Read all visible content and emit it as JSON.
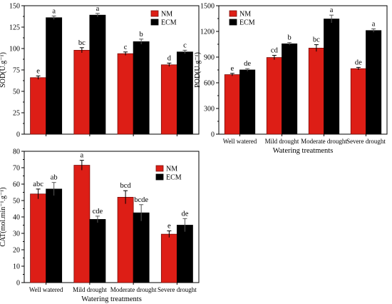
{
  "legend": {
    "nm": "NM",
    "ecm": "ECM"
  },
  "colors": {
    "nm": "#dd1e16",
    "ecm": "#000000",
    "nm_edge": "#7a0e0a"
  },
  "chart_data": [
    {
      "id": "sod",
      "type": "bar",
      "title": "",
      "xlabel": "",
      "ylabel": "SOD(U.g⁻¹)",
      "ylim": [
        0,
        150
      ],
      "yticks": [
        0,
        25,
        50,
        75,
        100,
        125,
        150
      ],
      "categories": [
        "",
        "",
        "",
        ""
      ],
      "legend_position": "top-right",
      "series": [
        {
          "name": "NM",
          "values": [
            66,
            98,
            94,
            81
          ],
          "errors": [
            2,
            3,
            2,
            2
          ],
          "labels": [
            "e",
            "bc",
            "c",
            "d"
          ]
        },
        {
          "name": "ECM",
          "values": [
            136,
            139,
            108,
            96
          ],
          "errors": [
            2,
            2,
            3,
            2
          ],
          "labels": [
            "a",
            "a",
            "b",
            "c"
          ]
        }
      ]
    },
    {
      "id": "pod",
      "type": "bar",
      "title": "",
      "xlabel": "Watering treatments",
      "ylabel": "POD(U.g⁻¹)",
      "ylim": [
        0,
        1500
      ],
      "yticks": [
        0,
        300,
        600,
        900,
        1200,
        1500
      ],
      "categories": [
        "Well watered",
        "Mild drought",
        "Moderate drought",
        "Severe drought"
      ],
      "legend_position": "top-left",
      "series": [
        {
          "name": "NM",
          "values": [
            695,
            895,
            1005,
            765
          ],
          "errors": [
            15,
            25,
            40,
            15
          ],
          "labels": [
            "e",
            "cd",
            "bc",
            "de"
          ]
        },
        {
          "name": "ECM",
          "values": [
            750,
            1055,
            1345,
            1210
          ],
          "errors": [
            15,
            15,
            45,
            20
          ],
          "labels": [
            "de",
            "b",
            "a",
            "a"
          ]
        }
      ]
    },
    {
      "id": "cat",
      "type": "bar",
      "title": "",
      "xlabel": "Watering treatments",
      "ylabel": "CAT(mol.min⁻¹.g⁻¹)",
      "ylim": [
        0,
        80
      ],
      "yticks": [
        0,
        10,
        20,
        30,
        40,
        50,
        60,
        70,
        80
      ],
      "categories": [
        "Well watered",
        "Mild drought",
        "Moderate drought",
        "Severe drought"
      ],
      "legend_position": "top-right",
      "series": [
        {
          "name": "NM",
          "values": [
            54,
            71.5,
            52,
            29.5
          ],
          "errors": [
            3,
            3,
            4,
            2
          ],
          "labels": [
            "abc",
            "a",
            "bcd",
            "e"
          ]
        },
        {
          "name": "ECM",
          "values": [
            57,
            38.5,
            42.5,
            35
          ],
          "errors": [
            4,
            2,
            5,
            4
          ],
          "labels": [
            "ab",
            "cde",
            "bcde",
            "de"
          ]
        }
      ]
    }
  ]
}
